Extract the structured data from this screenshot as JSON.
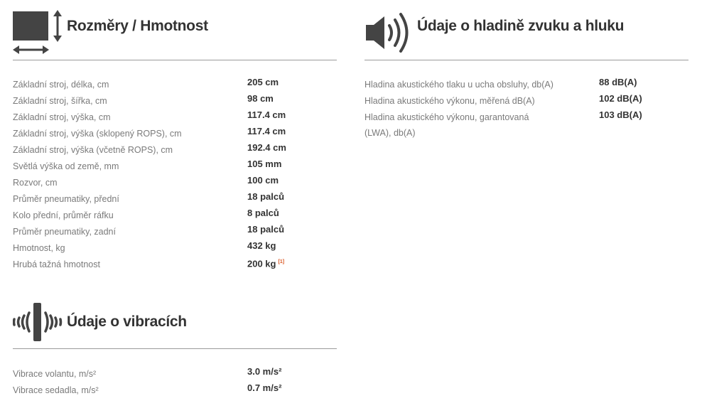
{
  "dimensions": {
    "title": "Rozměry / Hmotnost",
    "icon": "dimensions-icon",
    "rows": [
      {
        "label": "Základní stroj, délka, cm",
        "value": "205 cm"
      },
      {
        "label": "Základní stroj, šířka, cm",
        "value": "98 cm"
      },
      {
        "label": "Základní stroj, výška, cm",
        "value": "117.4 cm"
      },
      {
        "label": "Základní stroj, výška (sklopený ROPS), cm",
        "value": "117.4 cm"
      },
      {
        "label": "Základní stroj, výška (včetně ROPS), cm",
        "value": "192.4 cm"
      },
      {
        "label": "Světlá výška od země, mm",
        "value": "105 mm"
      },
      {
        "label": "Rozvor, cm",
        "value": "100 cm"
      },
      {
        "label": "Průměr pneumatiky, přední",
        "value": "18 palců"
      },
      {
        "label": "Kolo přední, průměr ráfku",
        "value": "8 palců"
      },
      {
        "label": "Průměr pneumatiky, zadní",
        "value": "18 palců"
      },
      {
        "label": "Hmotnost, kg",
        "value": "432 kg"
      },
      {
        "label": "Hrubá tažná hmotnost",
        "value": "200 kg",
        "footnote": "[1]"
      }
    ]
  },
  "noise": {
    "title": "Údaje o hladině zvuku a hluku",
    "icon": "speaker-icon",
    "rows": [
      {
        "label": "Hladina akustického tlaku u ucha obsluhy, db(A)",
        "value": "88 dB(A)"
      },
      {
        "label": "Hladina akustického výkonu, měřená dB(A)",
        "value": "102 dB(A)"
      },
      {
        "label": "Hladina akustického výkonu, garantovaná (LWA), db(A)",
        "value": "103 dB(A)"
      }
    ]
  },
  "vibration": {
    "title": "Údaje o vibracích",
    "icon": "vibration-icon",
    "rows": [
      {
        "label": "Vibrace volantu, m/s²",
        "value": "3.0 m/s²"
      },
      {
        "label": "Vibrace sedadla, m/s²",
        "value": "0.7 m/s²"
      }
    ]
  },
  "colors": {
    "text": "#333333",
    "label": "#7a7a7a",
    "icon": "#444444",
    "footnote": "#d9531e",
    "divider": "#9a9a9a"
  }
}
